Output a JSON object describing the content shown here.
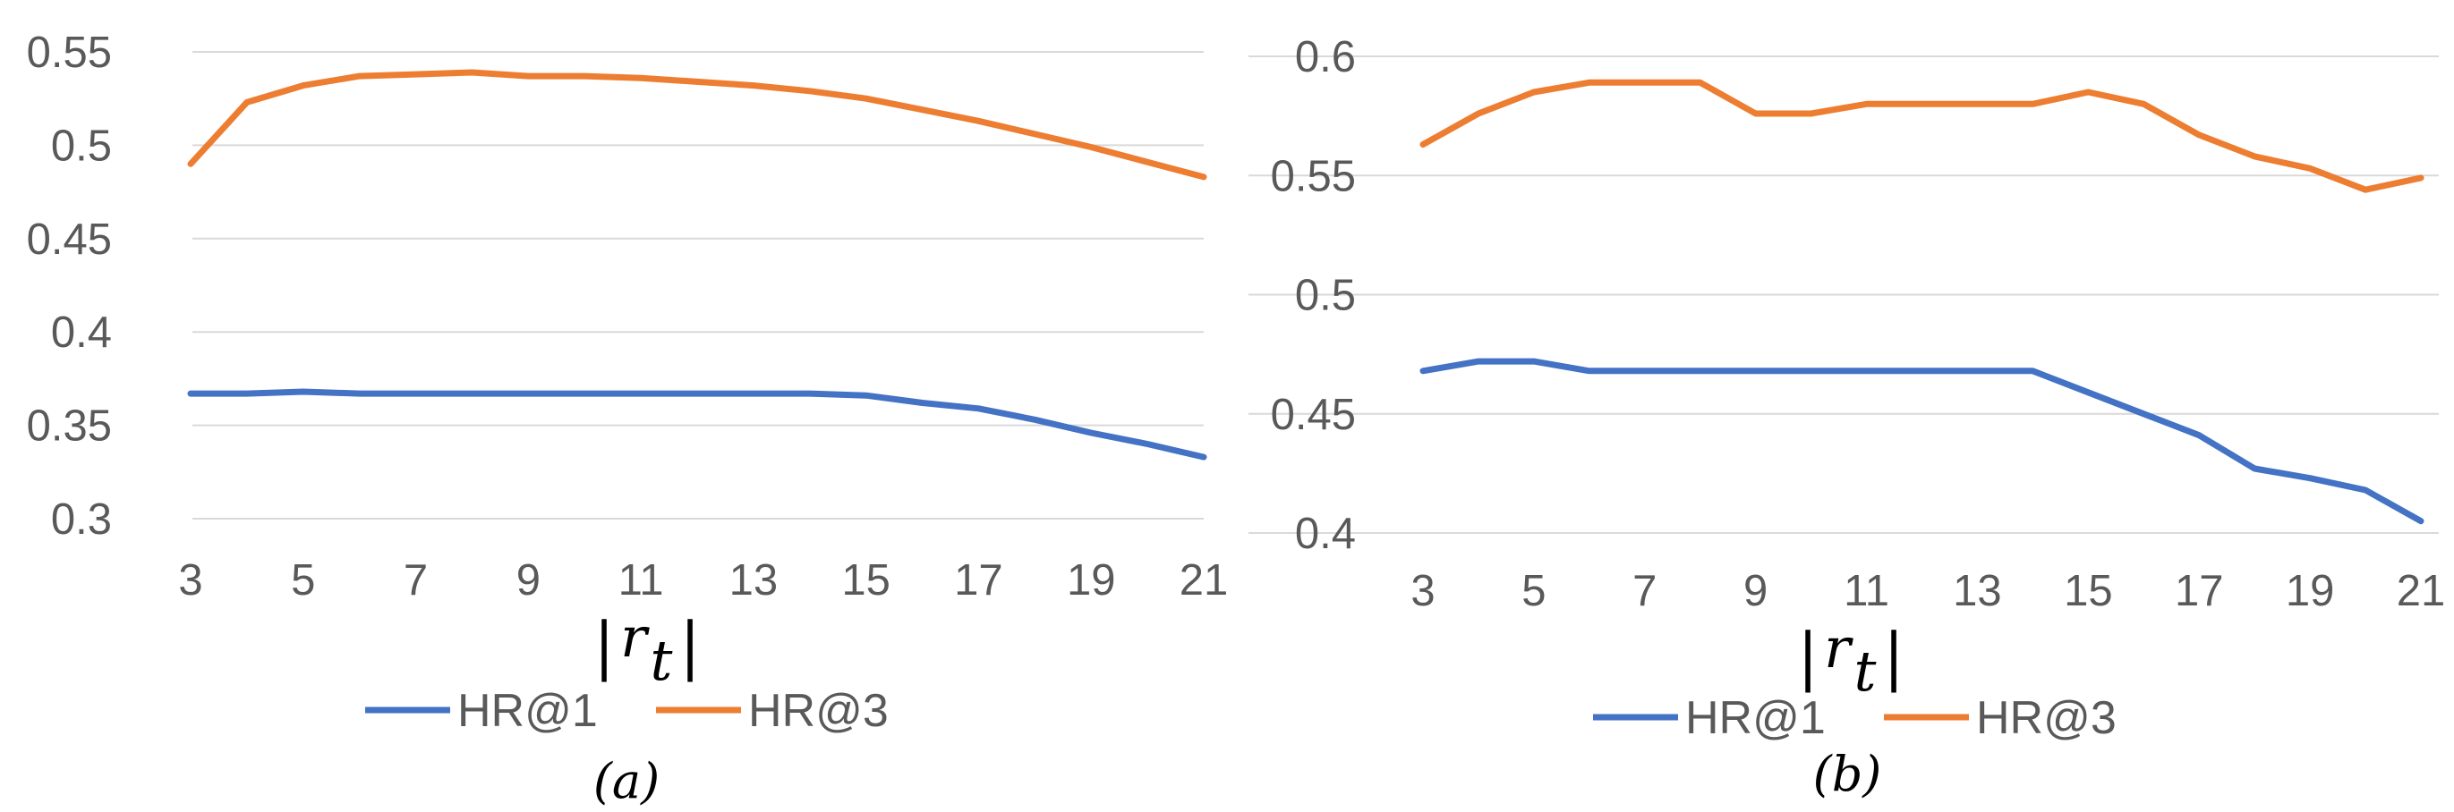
{
  "chart_data": [
    {
      "type": "line",
      "panel_label": "(a)",
      "xlabel": "|r_t|",
      "x": [
        3,
        4,
        5,
        6,
        7,
        8,
        9,
        10,
        11,
        12,
        13,
        14,
        15,
        16,
        17,
        18,
        19,
        20,
        21
      ],
      "x_tick_labels": [
        "3",
        "5",
        "7",
        "9",
        "11",
        "13",
        "15",
        "17",
        "19",
        "21"
      ],
      "ylim": [
        0.3,
        0.55
      ],
      "y_ticks": [
        0.3,
        0.35,
        0.4,
        0.45,
        0.5,
        0.55
      ],
      "y_tick_labels": [
        "0.3",
        "0.35",
        "0.4",
        "0.45",
        "0.5",
        "0.55"
      ],
      "grid": true,
      "legend_position": "bottom",
      "series": [
        {
          "name": "HR@1",
          "color": "#4472c4",
          "values": [
            0.367,
            0.367,
            0.368,
            0.367,
            0.367,
            0.367,
            0.367,
            0.367,
            0.367,
            0.367,
            0.367,
            0.367,
            0.366,
            0.362,
            0.359,
            0.353,
            0.346,
            0.34,
            0.333
          ]
        },
        {
          "name": "HR@3",
          "color": "#ed7d31",
          "values": [
            0.49,
            0.523,
            0.532,
            0.537,
            0.538,
            0.539,
            0.537,
            0.537,
            0.536,
            0.534,
            0.532,
            0.529,
            0.525,
            0.519,
            0.513,
            0.506,
            0.499,
            0.491,
            0.483
          ]
        }
      ]
    },
    {
      "type": "line",
      "panel_label": "(b)",
      "xlabel": "|r_t|",
      "x": [
        3,
        4,
        5,
        6,
        7,
        8,
        9,
        10,
        11,
        12,
        13,
        14,
        15,
        16,
        17,
        18,
        19,
        20,
        21
      ],
      "x_tick_labels": [
        "3",
        "5",
        "7",
        "9",
        "11",
        "13",
        "15",
        "17",
        "19",
        "21"
      ],
      "ylim": [
        0.4,
        0.6
      ],
      "y_ticks": [
        0.4,
        0.45,
        0.5,
        0.55,
        0.6
      ],
      "y_tick_labels": [
        "0.4",
        "0.45",
        "0.5",
        "0.55",
        "0.6"
      ],
      "grid": true,
      "legend_position": "bottom",
      "series": [
        {
          "name": "HR@1",
          "color": "#4472c4",
          "values": [
            0.468,
            0.472,
            0.472,
            0.468,
            0.468,
            0.468,
            0.468,
            0.468,
            0.468,
            0.468,
            0.468,
            0.468,
            0.459,
            0.45,
            0.441,
            0.427,
            0.423,
            0.418,
            0.405
          ]
        },
        {
          "name": "HR@3",
          "color": "#ed7d31",
          "values": [
            0.563,
            0.576,
            0.585,
            0.589,
            0.589,
            0.589,
            0.576,
            0.576,
            0.58,
            0.58,
            0.58,
            0.58,
            0.585,
            0.58,
            0.567,
            0.558,
            0.553,
            0.544,
            0.549
          ]
        }
      ]
    }
  ]
}
